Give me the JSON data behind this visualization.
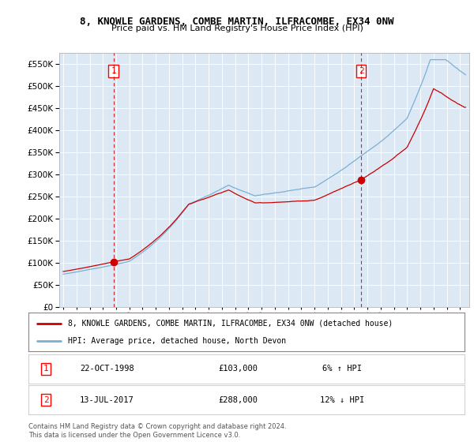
{
  "title1": "8, KNOWLE GARDENS, COMBE MARTIN, ILFRACOMBE, EX34 0NW",
  "title2": "Price paid vs. HM Land Registry's House Price Index (HPI)",
  "legend_line1": "8, KNOWLE GARDENS, COMBE MARTIN, ILFRACOMBE, EX34 0NW (detached house)",
  "legend_line2": "HPI: Average price, detached house, North Devon",
  "sale1_date": "22-OCT-1998",
  "sale1_price": "£103,000",
  "sale1_hpi": "6% ↑ HPI",
  "sale2_date": "13-JUL-2017",
  "sale2_price": "£288,000",
  "sale2_hpi": "12% ↓ HPI",
  "footer1": "Contains HM Land Registry data © Crown copyright and database right 2024.",
  "footer2": "This data is licensed under the Open Government Licence v3.0.",
  "sale1_year": 1998.8,
  "sale1_value": 103000,
  "sale2_year": 2017.53,
  "sale2_value": 288000,
  "hpi_color": "#7bafd4",
  "price_color": "#cc0000",
  "dashed_color": "#cc0000",
  "plot_bg_color": "#dce9f5",
  "background_color": "#ffffff",
  "grid_color": "#ffffff",
  "ylim_max": 575000,
  "ylim_min": 0,
  "seed": 123
}
